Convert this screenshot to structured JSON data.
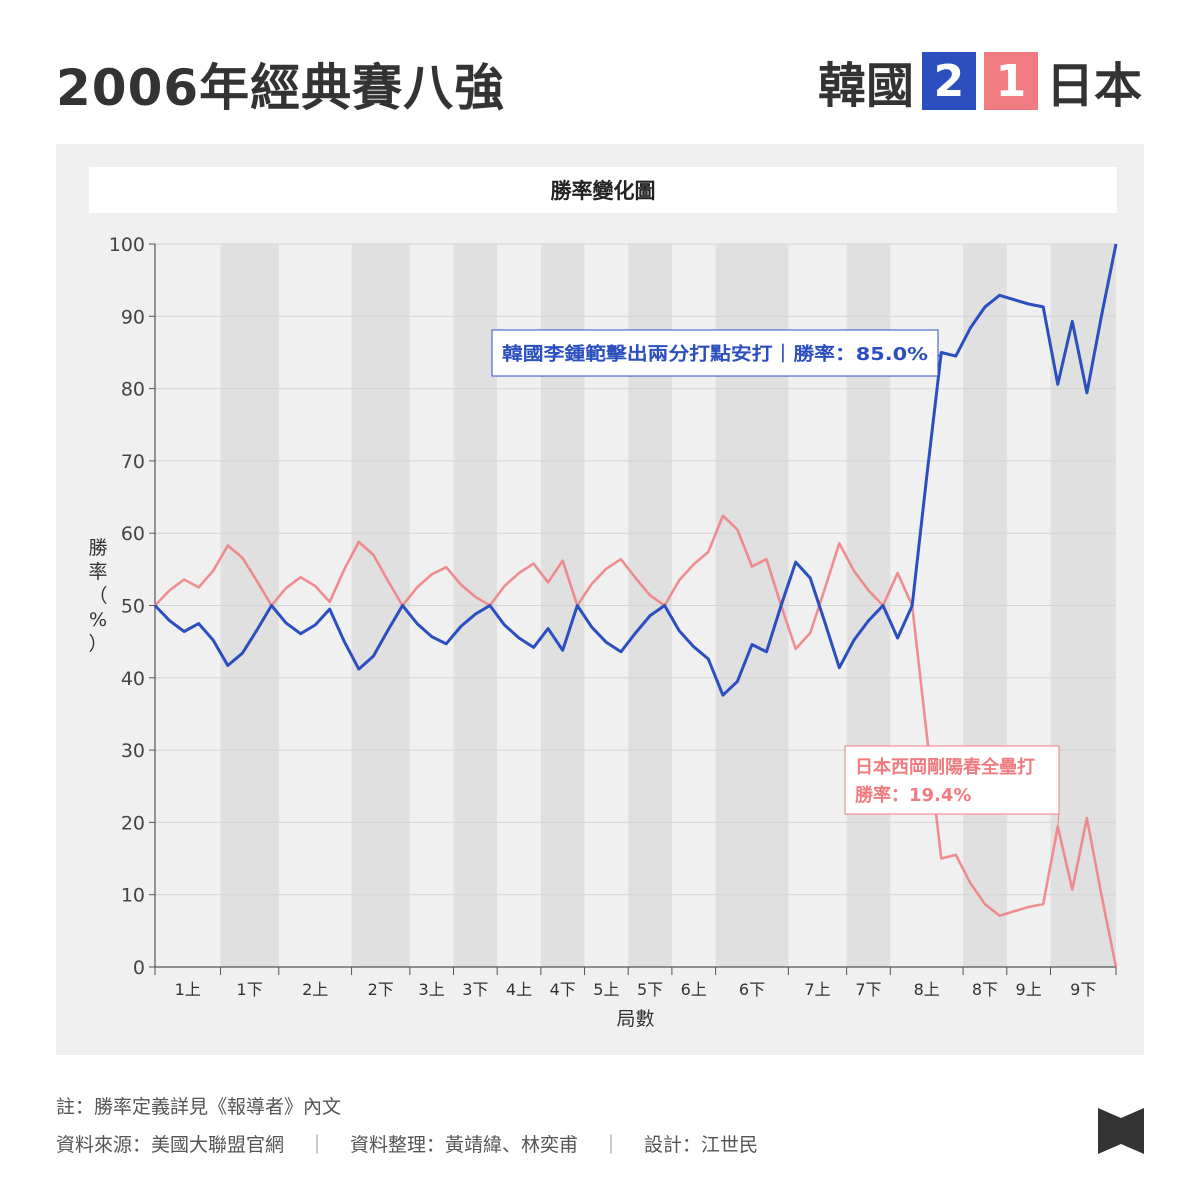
{
  "headline": "2006年經典賽八強",
  "scoreboard": {
    "team1": "韓國",
    "score1": "2",
    "score1_color": "#2b4fbf",
    "score2": "1",
    "team2": "日本",
    "score2_color": "#f07b80"
  },
  "chart_data": {
    "type": "line",
    "title": "勝率變化圖",
    "ylabel": "勝率（%）",
    "xlabel": "局數",
    "ylim": [
      0,
      100
    ],
    "yticks": [
      0,
      10,
      20,
      30,
      40,
      50,
      60,
      70,
      80,
      90,
      100
    ],
    "x_range": [
      0,
      66
    ],
    "half_innings": [
      {
        "label": "1上",
        "start": 0,
        "end": 4.5,
        "shaded": false
      },
      {
        "label": "1下",
        "start": 4.5,
        "end": 8.5,
        "shaded": true
      },
      {
        "label": "2上",
        "start": 8.5,
        "end": 13.5,
        "shaded": false
      },
      {
        "label": "2下",
        "start": 13.5,
        "end": 17.5,
        "shaded": true
      },
      {
        "label": "3上",
        "start": 17.5,
        "end": 20.5,
        "shaded": false
      },
      {
        "label": "3下",
        "start": 20.5,
        "end": 23.5,
        "shaded": true
      },
      {
        "label": "4上",
        "start": 23.5,
        "end": 26.5,
        "shaded": false
      },
      {
        "label": "4下",
        "start": 26.5,
        "end": 29.5,
        "shaded": true
      },
      {
        "label": "5上",
        "start": 29.5,
        "end": 32.5,
        "shaded": false
      },
      {
        "label": "5下",
        "start": 32.5,
        "end": 35.5,
        "shaded": true
      },
      {
        "label": "6上",
        "start": 35.5,
        "end": 38.5,
        "shaded": false
      },
      {
        "label": "6下",
        "start": 38.5,
        "end": 43.5,
        "shaded": true
      },
      {
        "label": "7上",
        "start": 43.5,
        "end": 47.5,
        "shaded": false
      },
      {
        "label": "7下",
        "start": 47.5,
        "end": 50.5,
        "shaded": true
      },
      {
        "label": "8上",
        "start": 50.5,
        "end": 55.5,
        "shaded": false
      },
      {
        "label": "8下",
        "start": 55.5,
        "end": 58.5,
        "shaded": true
      },
      {
        "label": "9上",
        "start": 58.5,
        "end": 61.5,
        "shaded": false
      },
      {
        "label": "9下",
        "start": 61.5,
        "end": 66,
        "shaded": true
      }
    ],
    "series": [
      {
        "name": "韓國",
        "color": "#2b4fbf",
        "values": [
          50,
          47.9,
          46.4,
          47.5,
          45.2,
          41.7,
          43.4,
          46.6,
          50,
          47.6,
          46.1,
          47.3,
          49.5,
          45,
          41.2,
          43,
          46.6,
          50,
          47.5,
          45.7,
          44.7,
          47.1,
          48.8,
          50,
          47.3,
          45.5,
          44.2,
          46.8,
          43.8,
          50,
          47,
          44.9,
          43.6,
          46.2,
          48.6,
          50,
          46.5,
          44.3,
          42.6,
          37.6,
          39.5,
          44.6,
          43.6,
          50,
          56,
          53.8,
          47.7,
          41.4,
          45.2,
          47.9,
          50,
          45.5,
          50,
          67.8,
          85,
          84.5,
          88.4,
          91.3,
          92.9,
          92.3,
          91.7,
          91.3,
          80.6,
          89.3,
          79.4,
          90,
          100
        ]
      },
      {
        "name": "日本",
        "color": "#f07b80",
        "values": [
          50,
          52.1,
          53.6,
          52.5,
          54.8,
          58.3,
          56.6,
          53.4,
          50,
          52.4,
          53.9,
          52.7,
          50.5,
          55,
          58.8,
          57,
          53.4,
          50,
          52.5,
          54.3,
          55.3,
          52.9,
          51.2,
          50,
          52.7,
          54.5,
          55.8,
          53.2,
          56.2,
          50,
          53,
          55.1,
          56.4,
          53.8,
          51.4,
          50,
          53.5,
          55.7,
          57.4,
          62.4,
          60.5,
          55.4,
          56.4,
          50,
          44,
          46.2,
          52.3,
          58.6,
          54.8,
          52.1,
          50,
          54.5,
          50,
          32.2,
          15,
          15.5,
          11.6,
          8.7,
          7.1,
          7.7,
          8.3,
          8.7,
          19.4,
          10.7,
          20.6,
          10,
          0
        ]
      }
    ],
    "annotations": [
      {
        "series": "韓國",
        "text": "韓國李鍾範擊出兩分打點安打｜勝率：85.0%",
        "x": 54,
        "y": 85.0
      },
      {
        "series": "日本",
        "text_line1": "日本西岡剛陽春全壘打",
        "text_line2": "勝率：19.4%",
        "x": 62,
        "y": 19.4
      }
    ],
    "grid": true
  },
  "footer": {
    "note": "註：勝率定義詳見《報導者》內文",
    "source": "資料來源：美國大聯盟官網",
    "separator": "｜",
    "compiled": "資料整理：黃靖緯、林奕甫",
    "design": "設計：江世民"
  },
  "logo_color": "#333333"
}
